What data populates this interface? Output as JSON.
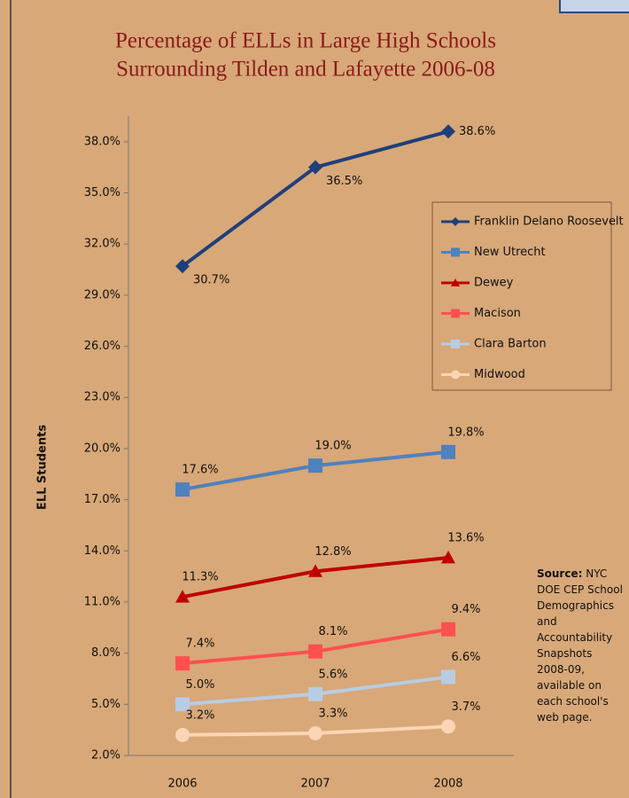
{
  "chart_data": {
    "type": "line",
    "title": [
      "Percentage of ELLs in Large High Schools",
      "Surrounding Tilden and Lafayette 2006-08"
    ],
    "y_label": "ELL Students",
    "categories": [
      "2006",
      "2007",
      "2008"
    ],
    "ylim": [
      2,
      39.5
    ],
    "yticks": [
      {
        "value": 2,
        "label": "2.0%"
      },
      {
        "value": 5,
        "label": "5.0%"
      },
      {
        "value": 8,
        "label": "8.0%"
      },
      {
        "value": 11,
        "label": "11.0%"
      },
      {
        "value": 14,
        "label": "14.0%"
      },
      {
        "value": 17,
        "label": "17.0%"
      },
      {
        "value": 20,
        "label": "20.0%"
      },
      {
        "value": 23,
        "label": "23.0%"
      },
      {
        "value": 26,
        "label": "26.0%"
      },
      {
        "value": 29,
        "label": "29.0%"
      },
      {
        "value": 32,
        "label": "32.0%"
      },
      {
        "value": 35,
        "label": "35.0%"
      },
      {
        "value": 38,
        "label": "38.0%"
      }
    ],
    "legend": "right",
    "series": [
      {
        "name": "Franklin Delano Roosevelt",
        "color": "#1f3f7a",
        "marker": "diamond",
        "values": [
          30.7,
          36.5,
          38.6
        ],
        "value_labels": [
          "30.7%",
          "36.5%",
          "38.6%"
        ]
      },
      {
        "name": "New Utrecht",
        "color": "#4f81bd",
        "marker": "square",
        "values": [
          17.6,
          19.0,
          19.8
        ],
        "value_labels": [
          "17.6%",
          "19.0%",
          "19.8%"
        ]
      },
      {
        "name": "Dewey",
        "color": "#c00000",
        "marker": "triangle",
        "values": [
          11.3,
          12.8,
          13.6
        ],
        "value_labels": [
          "11.3%",
          "12.8%",
          "13.6%"
        ]
      },
      {
        "name": "Macison",
        "color": "#ff5050",
        "marker": "square",
        "values": [
          7.4,
          8.1,
          9.4
        ],
        "value_labels": [
          "7.4%",
          "8.1%",
          "9.4%"
        ]
      },
      {
        "name": "Clara Barton",
        "color": "#b8cce4",
        "marker": "square",
        "values": [
          5.0,
          5.6,
          6.6
        ],
        "value_labels": [
          "5.0%",
          "5.6%",
          "6.6%"
        ]
      },
      {
        "name": "Midwood",
        "color": "#fcd5b4",
        "marker": "circle",
        "values": [
          3.2,
          3.3,
          3.7
        ],
        "value_labels": [
          "3.2%",
          "3.3%",
          "3.7%"
        ]
      }
    ],
    "source_label": "Source:",
    "source_text": "NYC DOE CEP School Demographics and Accountability Snapshots 2008-09, available on each school's web page."
  }
}
